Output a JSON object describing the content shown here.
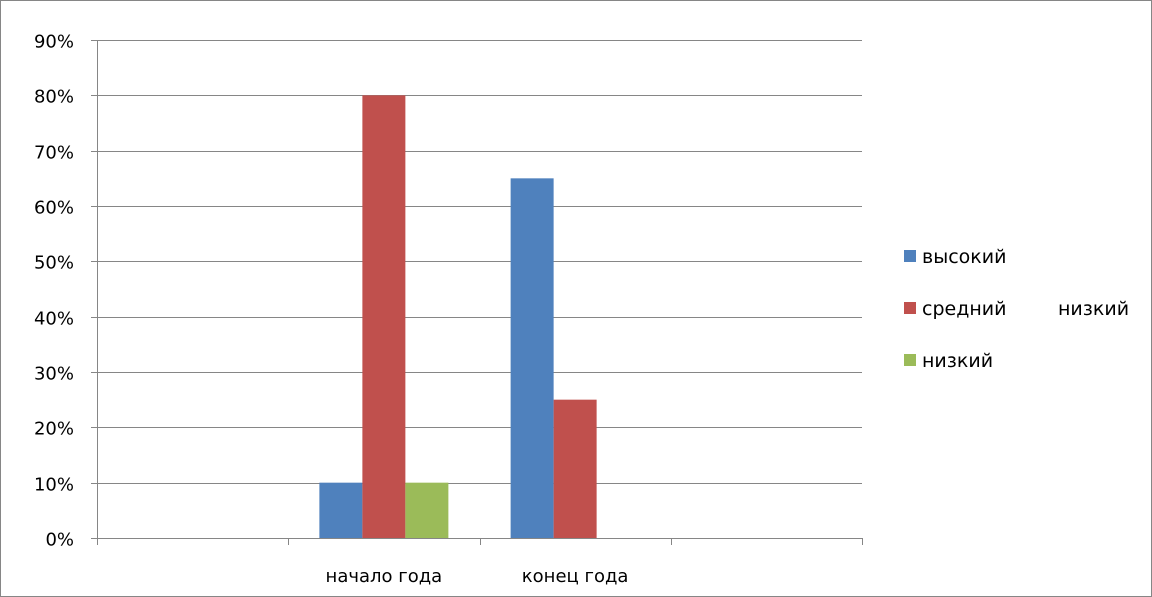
{
  "chart_data": {
    "type": "bar",
    "categories": [
      "",
      "начало года",
      "конец года",
      ""
    ],
    "series": [
      {
        "name": "высокий",
        "values": [
          null,
          10,
          65,
          null
        ],
        "color": "#4F81BD"
      },
      {
        "name": "средний",
        "values": [
          null,
          80,
          25,
          null
        ],
        "color": "#C0504D"
      },
      {
        "name": "низкий",
        "values": [
          null,
          10,
          0,
          null
        ],
        "color": "#9BBB59"
      }
    ],
    "ylim": [
      0,
      90
    ],
    "y_ticks": [
      0,
      10,
      20,
      30,
      40,
      50,
      60,
      70,
      80,
      90
    ],
    "y_tick_format": "percent",
    "grid": true,
    "legend_position": "right",
    "legend_extra_text": "низкий",
    "title": "",
    "xlabel": "",
    "ylabel": ""
  }
}
